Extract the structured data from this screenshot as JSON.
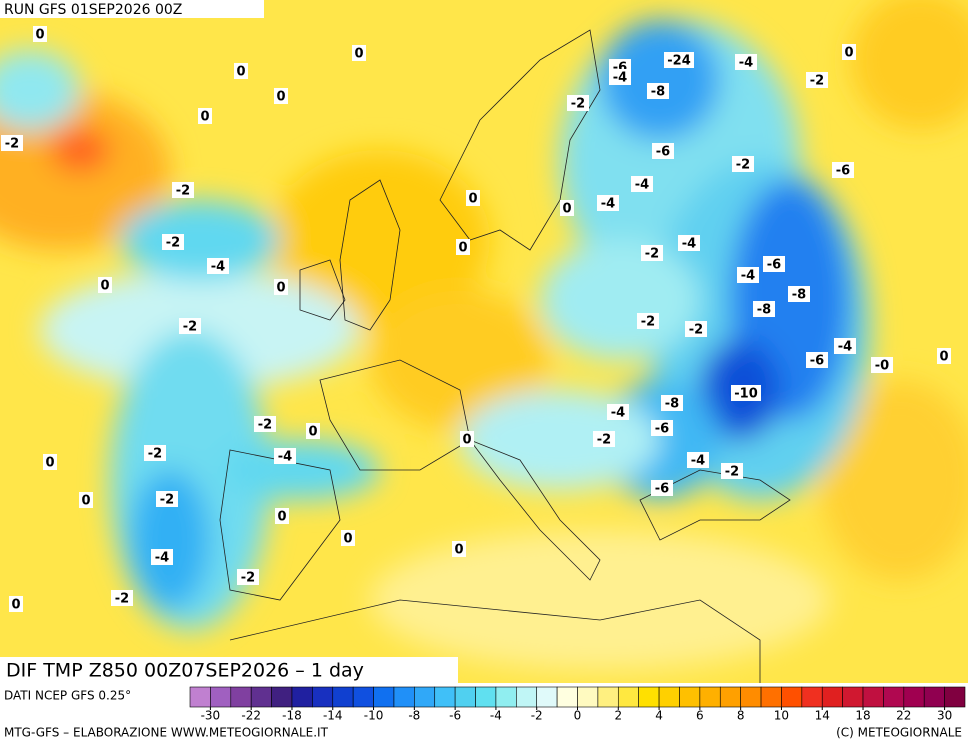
{
  "header": {
    "run": "RUN GFS 01SEP2026 00Z"
  },
  "map": {
    "labels": [
      "0",
      "-2",
      "0",
      "0",
      "0",
      "0",
      "-2",
      "-6",
      "-4",
      "-24",
      "-8",
      "-4",
      "-2",
      "0",
      "-2",
      "-6",
      "-4",
      "-6",
      "0",
      "-2",
      "-4",
      "0",
      "-2",
      "0",
      "-4",
      "-2",
      "-4",
      "0",
      "-4",
      "-6",
      "-8",
      "-2",
      "0",
      "-2",
      "-2",
      "-8",
      "-6",
      "-4",
      "-10",
      "-4",
      "-8",
      "-6",
      "-0",
      "0",
      "-2",
      "-2",
      "0",
      "-2",
      "-4",
      "-4",
      "-6",
      "-2",
      "0",
      "0",
      "-2",
      "0",
      "-4",
      "-2",
      "0",
      "0",
      "-2",
      "0",
      "0"
    ]
  },
  "footer": {
    "title": "DIF TMP Z850 00Z07SEP2026 – 1 day",
    "source": "DATI NCEP GFS 0.25°",
    "credit": "MTG-GFS – ELABORAZIONE WWW.METEOGIORNALE.IT",
    "copyright": "(C) METEOGIORNALE"
  },
  "colorbar": {
    "ticks": [
      -30,
      -22,
      -18,
      -14,
      -10,
      -8,
      -6,
      -4,
      -2,
      0,
      2,
      4,
      6,
      8,
      10,
      14,
      18,
      22,
      30
    ]
  }
}
